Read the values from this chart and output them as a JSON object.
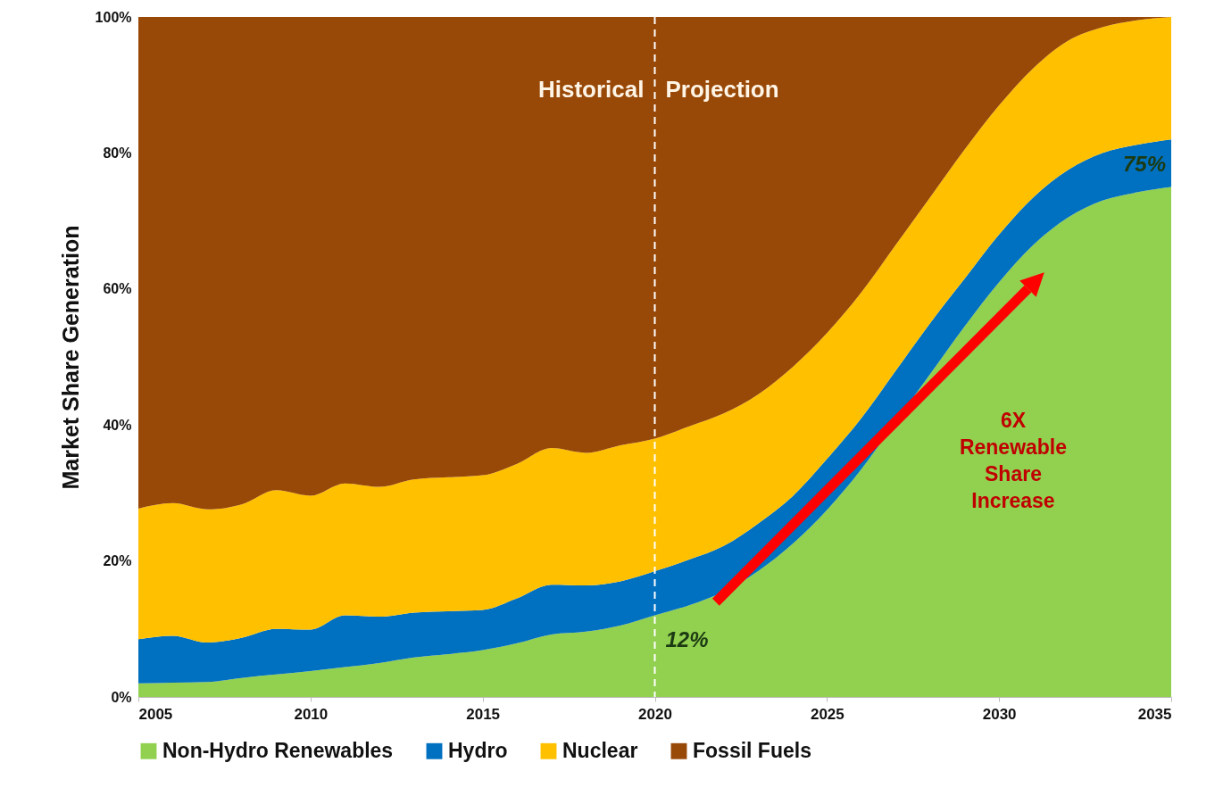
{
  "chart_data": {
    "type": "area",
    "stacked": true,
    "ylabel": "Market Share Generation",
    "x": [
      2005,
      2006,
      2007,
      2008,
      2009,
      2010,
      2011,
      2012,
      2013,
      2014,
      2015,
      2016,
      2017,
      2018,
      2019,
      2020,
      2021,
      2022,
      2023,
      2024,
      2025,
      2026,
      2027,
      2028,
      2029,
      2030,
      2031,
      2032,
      2033,
      2034,
      2035
    ],
    "series": [
      {
        "name": "Non-Hydro Renewables",
        "color": "#92d050",
        "values": [
          2.0,
          2.1,
          2.2,
          2.8,
          3.3,
          3.8,
          4.4,
          5.0,
          5.8,
          6.3,
          6.9,
          7.9,
          9.2,
          9.6,
          10.5,
          12,
          13.5,
          15.5,
          18.5,
          22.5,
          27.5,
          33.5,
          40.5,
          47.5,
          54.5,
          61,
          66.5,
          70.5,
          73,
          74.2,
          75
        ]
      },
      {
        "name": "Hydro",
        "color": "#0070c0",
        "values": [
          6.5,
          6.9,
          5.8,
          5.9,
          6.7,
          6.1,
          7.6,
          6.8,
          6.6,
          6.3,
          5.9,
          6.6,
          7.3,
          6.8,
          6.5,
          6.5,
          6.7,
          6.7,
          7.0,
          7.0,
          7.5,
          7.5,
          7.5,
          7.5,
          7.0,
          7.0,
          7.0,
          7.0,
          7.0,
          7.0,
          7.0
        ]
      },
      {
        "name": "Nuclear",
        "color": "#ffc000",
        "values": [
          19.2,
          19.5,
          19.6,
          19.6,
          20.4,
          19.7,
          19.4,
          19.1,
          19.6,
          19.7,
          19.8,
          19.8,
          20.1,
          19.5,
          20.0,
          19.5,
          19.6,
          19.5,
          19.0,
          19.0,
          18.5,
          18.5,
          18.5,
          18.5,
          19.0,
          19.0,
          19.0,
          19.0,
          18.5,
          18.3,
          18.0
        ]
      },
      {
        "name": "Fossil Fuels",
        "color": "#984807",
        "values": [
          72.3,
          71.5,
          72.4,
          71.7,
          69.6,
          70.4,
          68.6,
          69.1,
          68.0,
          67.7,
          67.4,
          65.7,
          63.4,
          64.1,
          63,
          62,
          60.2,
          58.3,
          55.5,
          51.5,
          46.5,
          40.5,
          33.5,
          26.5,
          19.5,
          13,
          7.5,
          3.5,
          1.5,
          0.5,
          0
        ]
      }
    ],
    "xlim": [
      2005,
      2035
    ],
    "xticks": [
      2005,
      2010,
      2015,
      2020,
      2025,
      2030,
      2035
    ],
    "ylim": [
      0,
      100
    ],
    "yticks": [
      {
        "value": 0,
        "label": "0%"
      },
      {
        "value": 20,
        "label": "20%"
      },
      {
        "value": 40,
        "label": "40%"
      },
      {
        "value": 60,
        "label": "60%"
      },
      {
        "value": 80,
        "label": "80%"
      },
      {
        "value": 100,
        "label": "100%"
      }
    ],
    "ref_lines": [
      {
        "axis": "x",
        "value": 2020,
        "color": "#ffffff",
        "line_style": "dashed"
      }
    ],
    "annotations": [
      "Historical",
      "Projection",
      "6X\nRenewable\nShare\nIncrease",
      {
        "text": "12%",
        "x": 2020,
        "y": 12
      },
      {
        "text": "75%",
        "x": 2035,
        "y": 75
      }
    ],
    "legend": "bottom",
    "grid": false
  }
}
